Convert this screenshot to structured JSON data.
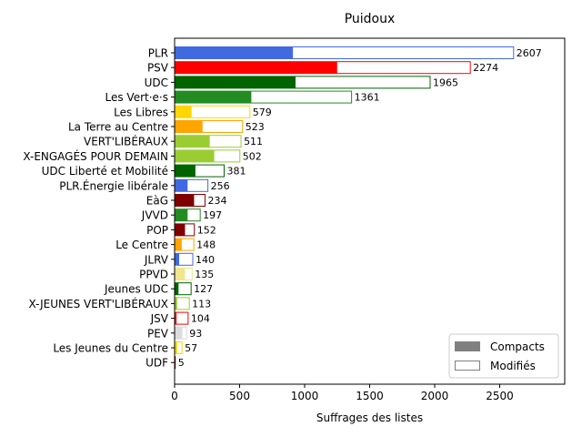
{
  "chart_data": {
    "type": "bar",
    "orientation": "horizontal",
    "stacked": true,
    "title": "Puidoux",
    "xlabel": "Suffrages des listes",
    "ylabel": "",
    "xlim": [
      0,
      3000
    ],
    "xticks": [
      0,
      500,
      1000,
      1500,
      2000,
      2500
    ],
    "grid": false,
    "legend_position": "lower-right",
    "legend": [
      {
        "name": "Compacts",
        "style": "filled",
        "color": "#808080"
      },
      {
        "name": "Modifiés",
        "style": "outline",
        "color": "#808080"
      }
    ],
    "categories": [
      {
        "label": "PLR",
        "total": 2607,
        "compact": 910,
        "color": "#4169e1"
      },
      {
        "label": "PSV",
        "total": 2274,
        "compact": 1250,
        "color": "#ff0000"
      },
      {
        "label": "UDC",
        "total": 1965,
        "compact": 930,
        "color": "#006400"
      },
      {
        "label": "Les Vert·e·s",
        "total": 1361,
        "compact": 590,
        "color": "#228b22"
      },
      {
        "label": "Les Libres",
        "total": 579,
        "compact": 130,
        "color": "#ffd700"
      },
      {
        "label": "La Terre au Centre",
        "total": 523,
        "compact": 215,
        "color": "#ffa500"
      },
      {
        "label": "VERT'LIBÉRAUX",
        "total": 511,
        "compact": 270,
        "color": "#9acd32"
      },
      {
        "label": "X-ENGAGÉS POUR DEMAIN",
        "total": 502,
        "compact": 305,
        "color": "#9acd32"
      },
      {
        "label": "UDC Liberté et Mobilité",
        "total": 381,
        "compact": 160,
        "color": "#006400"
      },
      {
        "label": "PLR.Énergie libérale",
        "total": 256,
        "compact": 100,
        "color": "#4169e1"
      },
      {
        "label": "EàG",
        "total": 234,
        "compact": 150,
        "color": "#800000"
      },
      {
        "label": "JVVD",
        "total": 197,
        "compact": 100,
        "color": "#228b22"
      },
      {
        "label": "POP",
        "total": 152,
        "compact": 80,
        "color": "#800000"
      },
      {
        "label": "Le Centre",
        "total": 148,
        "compact": 55,
        "color": "#ffa500"
      },
      {
        "label": "JLRV",
        "total": 140,
        "compact": 35,
        "color": "#4169e1"
      },
      {
        "label": "PPVD",
        "total": 135,
        "compact": 80,
        "color": "#f0e68c"
      },
      {
        "label": "Jeunes UDC",
        "total": 127,
        "compact": 30,
        "color": "#006400"
      },
      {
        "label": "X-JEUNES VERT'LIBÉRAUX",
        "total": 113,
        "compact": 20,
        "color": "#9acd32"
      },
      {
        "label": "JSV",
        "total": 104,
        "compact": 15,
        "color": "#ff0000"
      },
      {
        "label": "PEV",
        "total": 93,
        "compact": 60,
        "color": "#dcdcdc"
      },
      {
        "label": "Les Jeunes du Centre",
        "total": 57,
        "compact": 20,
        "color": "#ffd700"
      },
      {
        "label": "UDF",
        "total": 5,
        "compact": 2,
        "color": "#800000"
      }
    ]
  }
}
